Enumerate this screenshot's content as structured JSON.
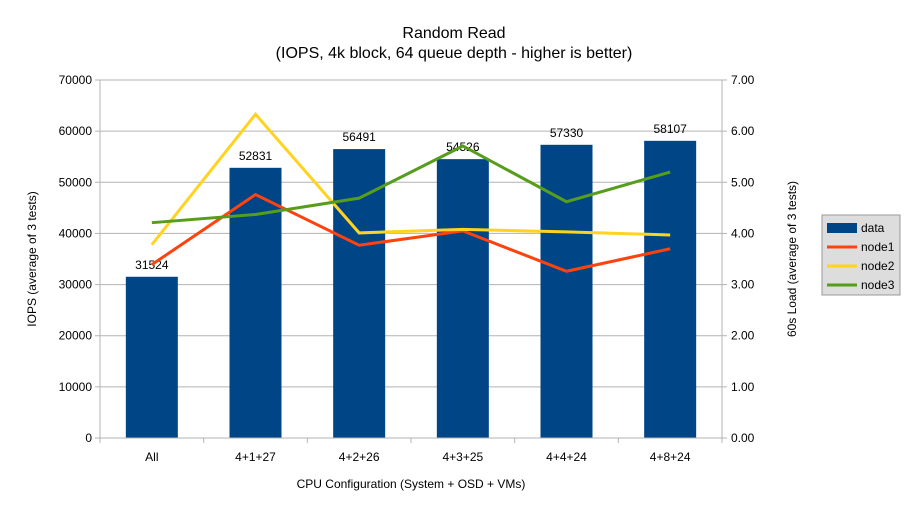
{
  "chart_data": {
    "type": "bar+line",
    "title": "Random Read",
    "subtitle": "(IOPS, 4k block, 64 queue depth - higher is better)",
    "xlabel": "CPU Configuration (System + OSD + VMs)",
    "ylabel": "IOPS (average of 3 tests)",
    "y2label": "60s Load (average of 3 tests)",
    "categories": [
      "All",
      "4+1+27",
      "4+2+26",
      "4+3+25",
      "4+4+24",
      "4+8+24"
    ],
    "ylim": [
      0,
      70000
    ],
    "yticks": [
      "0",
      "10000",
      "20000",
      "30000",
      "40000",
      "50000",
      "60000",
      "70000"
    ],
    "y2lim": [
      0,
      7
    ],
    "y2ticks": [
      "0.00",
      "1.00",
      "2.00",
      "3.00",
      "4.00",
      "5.00",
      "6.00",
      "7.00"
    ],
    "grid": true,
    "legend_placement": "right",
    "bar_series": {
      "name": "data",
      "color": "#004586",
      "values": [
        31524,
        52831,
        56491,
        54526,
        57330,
        58107
      ],
      "labels": [
        "31524",
        "52831",
        "56491",
        "54526",
        "57330",
        "58107"
      ]
    },
    "line_series": [
      {
        "name": "node1",
        "color": "#ff420e",
        "axis": "right",
        "values": [
          3.39,
          4.76,
          3.77,
          4.05,
          3.26,
          3.7
        ]
      },
      {
        "name": "node2",
        "color": "#ffd320",
        "axis": "right",
        "values": [
          3.78,
          6.33,
          4.01,
          4.08,
          4.03,
          3.97
        ]
      },
      {
        "name": "node3",
        "color": "#579d1c",
        "axis": "right",
        "values": [
          4.21,
          4.37,
          4.69,
          5.71,
          4.62,
          5.2
        ]
      }
    ]
  }
}
